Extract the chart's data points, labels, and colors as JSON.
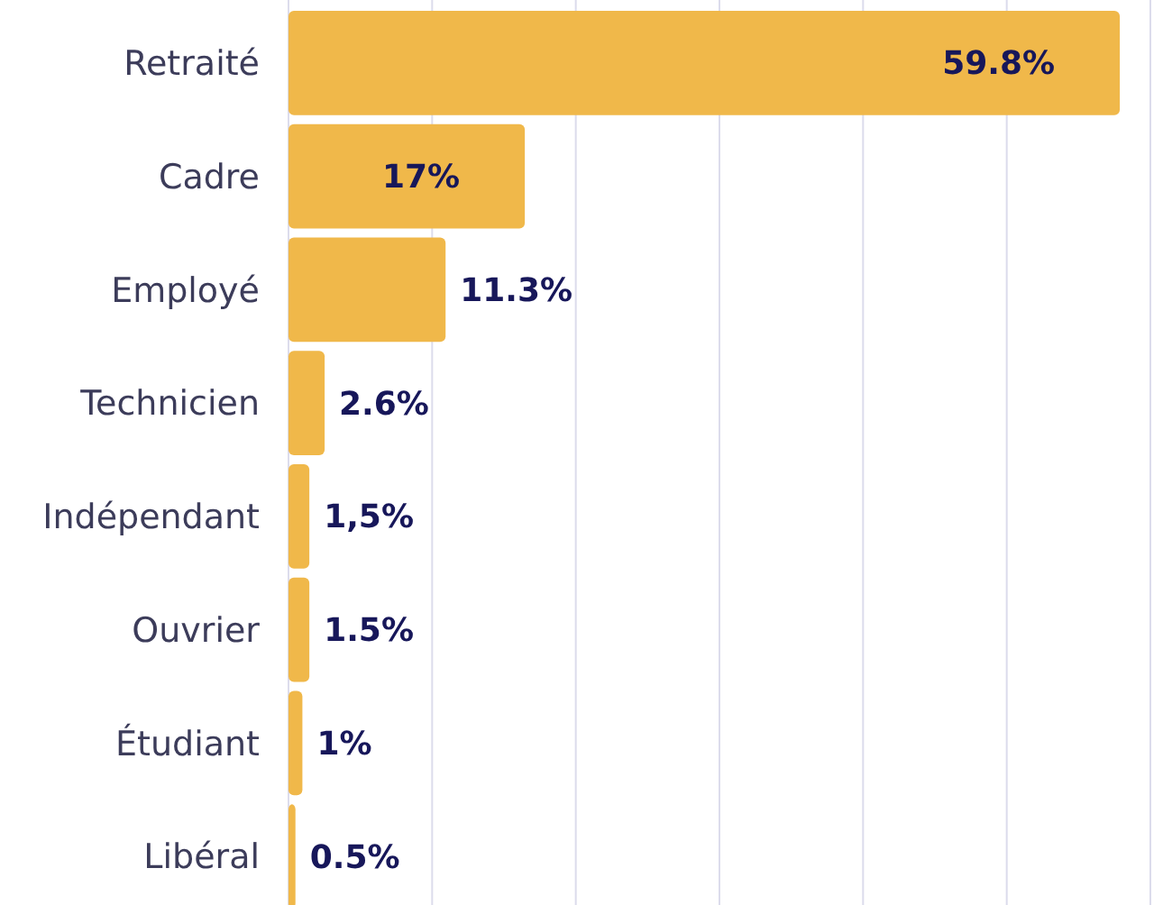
{
  "chart_data": {
    "type": "bar",
    "orientation": "horizontal",
    "categories": [
      "Retraité",
      "Cadre",
      "Employé",
      "Technicien",
      "Indépendant",
      "Ouvrier",
      "Étudiant",
      "Libéral"
    ],
    "values": [
      59.8,
      17,
      11.3,
      2.6,
      1.5,
      1.5,
      1,
      0.5
    ],
    "value_labels": [
      "59.8%",
      "17%",
      "11.3%",
      "2.6%",
      "1,5%",
      "1.5%",
      "1%",
      "0.5%"
    ],
    "color": "#f0b84a",
    "xlim": [
      0,
      62
    ],
    "xticks": [
      {
        "value": 0,
        "label": null
      },
      {
        "value": 10.333,
        "label": null
      },
      {
        "value": 20.667,
        "label": null
      },
      {
        "value": 31,
        "label": null
      },
      {
        "value": 41.333,
        "label": null
      },
      {
        "value": 51.667,
        "label": null
      },
      {
        "value": 62,
        "label": null
      }
    ],
    "grid": "x",
    "tick_labels": "y"
  }
}
